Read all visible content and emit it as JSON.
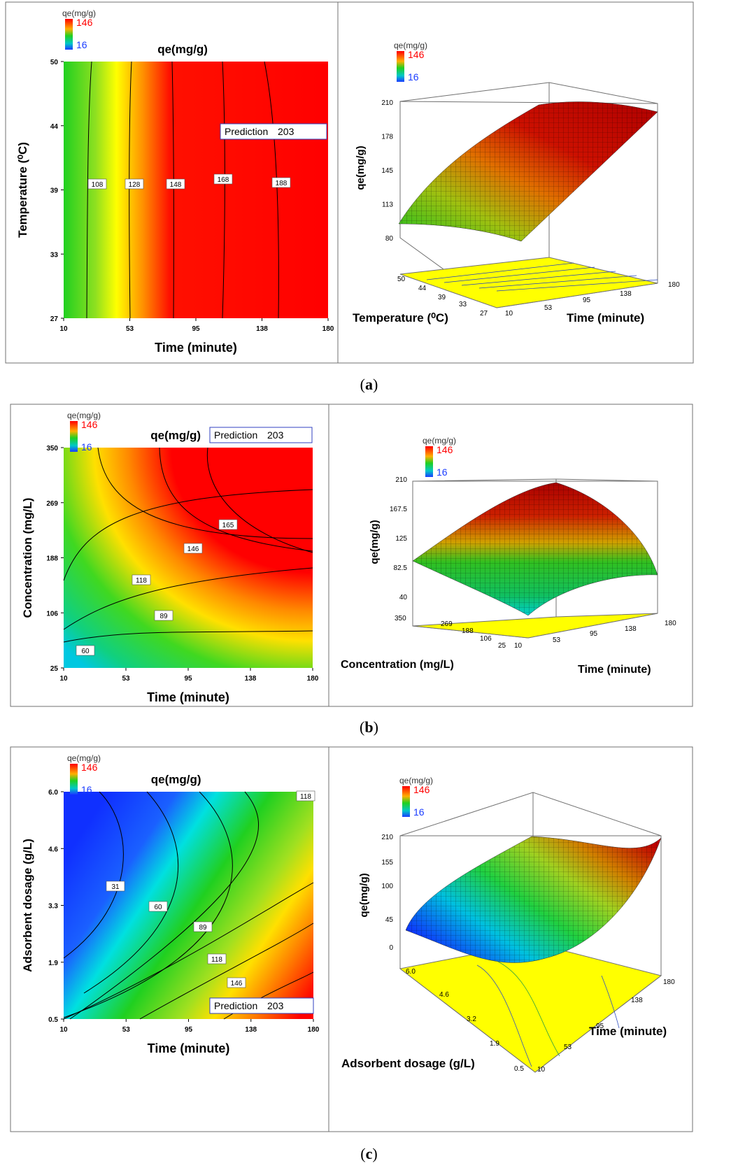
{
  "colors": {
    "high": "#ff0000",
    "low": "#1a3cff",
    "frame": "#707070",
    "mesh": "#000000",
    "base": "#ffff00"
  },
  "panels": [
    {
      "caption": {
        "open": "(",
        "letter": "a",
        "close": ")"
      },
      "contour": {
        "legend": {
          "title": "qe(mg/g)",
          "high": "146",
          "low": "16"
        },
        "title": "qe(mg/g)",
        "xlabel": "Time (minute)",
        "ylabel": "Temperature (⁰C)",
        "xticks": [
          "10",
          "53",
          "95",
          "138",
          "180"
        ],
        "yticks": [
          "27",
          "33",
          "39",
          "44",
          "50"
        ],
        "prediction": {
          "label": "Prediction",
          "value": "203"
        },
        "contour_labels": [
          "108",
          "128",
          "148",
          "168",
          "188"
        ]
      },
      "surface": {
        "legend": {
          "title": "qe(mg/g)",
          "high": "146",
          "low": "16"
        },
        "zlabel": "qe(mg/g)",
        "zticks": [
          "80",
          "113",
          "145",
          "178",
          "210"
        ],
        "xlabel": "Time (minute)",
        "xticks": [
          "10",
          "53",
          "95",
          "138",
          "180"
        ],
        "ylabel": "Temperature (⁰C)",
        "yticks": [
          "27",
          "33",
          "39",
          "44",
          "50"
        ]
      }
    },
    {
      "caption": {
        "open": "(",
        "letter": "b",
        "close": ")"
      },
      "contour": {
        "legend": {
          "title": "qe(mg/g)",
          "high": "146",
          "low": "16"
        },
        "title": "qe(mg/g)",
        "xlabel": "Time (minute)",
        "ylabel": "Concentration (mg/L)",
        "xticks": [
          "10",
          "53",
          "95",
          "138",
          "180"
        ],
        "yticks": [
          "25",
          "106",
          "188",
          "269",
          "350"
        ],
        "prediction": {
          "label": "Prediction",
          "value": "203"
        },
        "contour_labels": [
          "60",
          "89",
          "118",
          "146",
          "165"
        ]
      },
      "surface": {
        "legend": {
          "title": "qe(mg/g)",
          "high": "146",
          "low": "16"
        },
        "zlabel": "qe(mg/g)",
        "zticks": [
          "40",
          "82.5",
          "125",
          "167.5",
          "210"
        ],
        "xlabel": "Time (minute)",
        "xticks": [
          "10",
          "53",
          "95",
          "138",
          "180"
        ],
        "ylabel": "Concentration (mg/L)",
        "yticks": [
          "25",
          "106",
          "188",
          "269",
          "350"
        ]
      }
    },
    {
      "caption": {
        "open": "(",
        "letter": "c",
        "close": ")"
      },
      "contour": {
        "legend": {
          "title": "qe(mg/g)",
          "high": "146",
          "low": "16"
        },
        "title": "qe(mg/g)",
        "xlabel": "Time (minute)",
        "ylabel": "Adsorbent dosage (g/L)",
        "xticks": [
          "10",
          "53",
          "95",
          "138",
          "180"
        ],
        "yticks": [
          "0.5",
          "1.9",
          "3.3",
          "4.6",
          "6.0"
        ],
        "prediction": {
          "label": "Prediction",
          "value": "203"
        },
        "contour_labels": [
          "31",
          "60",
          "89",
          "118",
          "146",
          "118"
        ]
      },
      "surface": {
        "legend": {
          "title": "qe(mg/g)",
          "high": "146",
          "low": "16"
        },
        "zlabel": "qe(mg/g)",
        "zticks": [
          "0",
          "45",
          "100",
          "155",
          "210"
        ],
        "xlabel": "Time (minute)",
        "xticks": [
          "10",
          "53",
          "95",
          "138",
          "180"
        ],
        "ylabel": "Adsorbent dosage (g/L)",
        "yticks": [
          "0.5",
          "1.9",
          "3.2",
          "4.6",
          "6.0"
        ]
      }
    }
  ],
  "chart_data": [
    {
      "type": "heatmap",
      "panel": "a",
      "title": "qe(mg/g)",
      "xlabel": "Time (minute)",
      "ylabel": "Temperature (⁰C)",
      "xlim": [
        10,
        180
      ],
      "ylim": [
        27,
        50
      ],
      "contour_levels": [
        108,
        128,
        148,
        168,
        188
      ],
      "prediction": 203,
      "color_scale": [
        16,
        146
      ]
    },
    {
      "type": "surface",
      "panel": "a",
      "zlabel": "qe(mg/g)",
      "xlabel": "Time (minute)",
      "ylabel": "Temperature (⁰C)",
      "xlim": [
        10,
        180
      ],
      "ylim": [
        27,
        50
      ],
      "zlim": [
        80,
        210
      ]
    },
    {
      "type": "heatmap",
      "panel": "b",
      "title": "qe(mg/g)",
      "xlabel": "Time (minute)",
      "ylabel": "Concentration (mg/L)",
      "xlim": [
        10,
        180
      ],
      "ylim": [
        25,
        350
      ],
      "contour_levels": [
        60,
        89,
        118,
        146,
        165
      ],
      "prediction": 203,
      "color_scale": [
        16,
        146
      ]
    },
    {
      "type": "surface",
      "panel": "b",
      "zlabel": "qe(mg/g)",
      "xlabel": "Time (minute)",
      "ylabel": "Concentration (mg/L)",
      "xlim": [
        10,
        180
      ],
      "ylim": [
        25,
        350
      ],
      "zlim": [
        40,
        210
      ]
    },
    {
      "type": "heatmap",
      "panel": "c",
      "title": "qe(mg/g)",
      "xlabel": "Time (minute)",
      "ylabel": "Adsorbent dosage (g/L)",
      "xlim": [
        10,
        180
      ],
      "ylim": [
        0.5,
        6.0
      ],
      "contour_levels": [
        31,
        60,
        89,
        118,
        146
      ],
      "prediction": 203,
      "color_scale": [
        16,
        146
      ]
    },
    {
      "type": "surface",
      "panel": "c",
      "zlabel": "qe(mg/g)",
      "xlabel": "Time (minute)",
      "ylabel": "Adsorbent dosage (g/L)",
      "xlim": [
        10,
        180
      ],
      "ylim": [
        0.5,
        6.0
      ],
      "zlim": [
        0,
        210
      ]
    }
  ]
}
